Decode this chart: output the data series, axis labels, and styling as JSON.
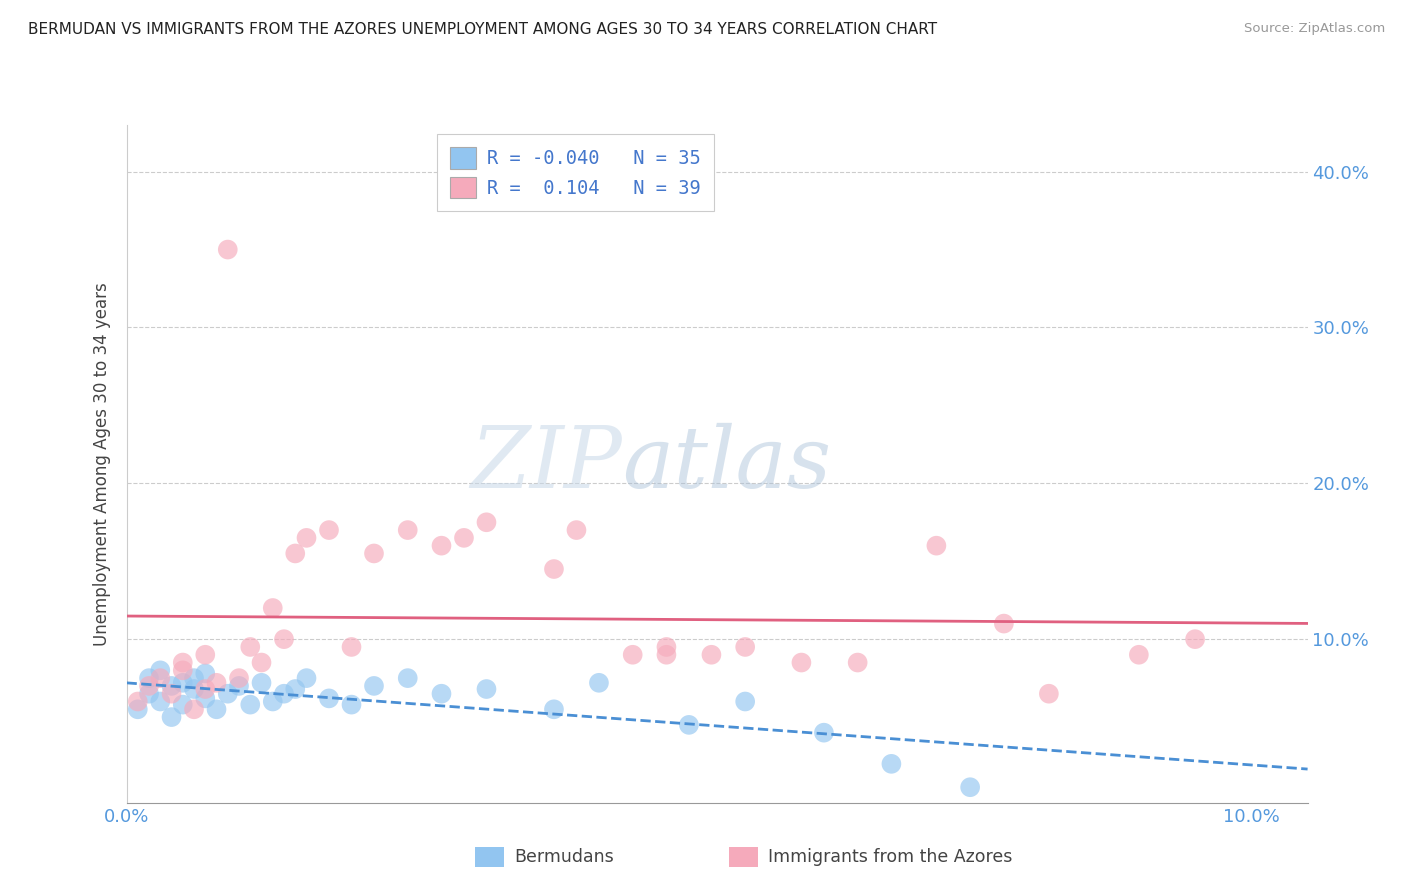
{
  "title": "BERMUDAN VS IMMIGRANTS FROM THE AZORES UNEMPLOYMENT AMONG AGES 30 TO 34 YEARS CORRELATION CHART",
  "source": "Source: ZipAtlas.com",
  "ylabel": "Unemployment Among Ages 30 to 34 years",
  "xlim": [
    0.0,
    0.105
  ],
  "ylim": [
    -0.005,
    0.43
  ],
  "xticks": [
    0.0,
    0.1
  ],
  "xtick_labels": [
    "0.0%",
    "10.0%"
  ],
  "yticks": [
    0.1,
    0.2,
    0.3,
    0.4
  ],
  "ytick_labels": [
    "10.0%",
    "20.0%",
    "30.0%",
    "40.0%"
  ],
  "bermudans_R": -0.04,
  "bermudans_N": 35,
  "azores_R": 0.104,
  "azores_N": 39,
  "legend_label_1": "Bermudans",
  "legend_label_2": "Immigrants from the Azores",
  "blue_color": "#92C5F0",
  "pink_color": "#F5AABB",
  "blue_line_color": "#4A8FD4",
  "pink_line_color": "#E06080",
  "watermark_zip": "ZIP",
  "watermark_atlas": "atlas",
  "bermudans_x": [
    0.001,
    0.002,
    0.002,
    0.003,
    0.003,
    0.004,
    0.004,
    0.005,
    0.005,
    0.006,
    0.006,
    0.007,
    0.007,
    0.008,
    0.009,
    0.01,
    0.011,
    0.012,
    0.013,
    0.014,
    0.015,
    0.016,
    0.018,
    0.02,
    0.022,
    0.025,
    0.028,
    0.032,
    0.038,
    0.042,
    0.05,
    0.055,
    0.062,
    0.068,
    0.075
  ],
  "bermudans_y": [
    0.055,
    0.065,
    0.075,
    0.06,
    0.08,
    0.05,
    0.07,
    0.072,
    0.058,
    0.068,
    0.075,
    0.062,
    0.078,
    0.055,
    0.065,
    0.07,
    0.058,
    0.072,
    0.06,
    0.065,
    0.068,
    0.075,
    0.062,
    0.058,
    0.07,
    0.075,
    0.065,
    0.068,
    0.055,
    0.072,
    0.045,
    0.06,
    0.04,
    0.02,
    0.005
  ],
  "azores_x": [
    0.001,
    0.002,
    0.003,
    0.004,
    0.005,
    0.005,
    0.006,
    0.007,
    0.007,
    0.008,
    0.009,
    0.01,
    0.011,
    0.012,
    0.013,
    0.014,
    0.015,
    0.016,
    0.018,
    0.02,
    0.022,
    0.025,
    0.028,
    0.03,
    0.032,
    0.038,
    0.04,
    0.045,
    0.048,
    0.048,
    0.052,
    0.055,
    0.06,
    0.065,
    0.072,
    0.078,
    0.082,
    0.09,
    0.095
  ],
  "azores_y": [
    0.06,
    0.07,
    0.075,
    0.065,
    0.08,
    0.085,
    0.055,
    0.068,
    0.09,
    0.072,
    0.35,
    0.075,
    0.095,
    0.085,
    0.12,
    0.1,
    0.155,
    0.165,
    0.17,
    0.095,
    0.155,
    0.17,
    0.16,
    0.165,
    0.175,
    0.145,
    0.17,
    0.09,
    0.09,
    0.095,
    0.09,
    0.095,
    0.085,
    0.085,
    0.16,
    0.11,
    0.065,
    0.09,
    0.1
  ]
}
